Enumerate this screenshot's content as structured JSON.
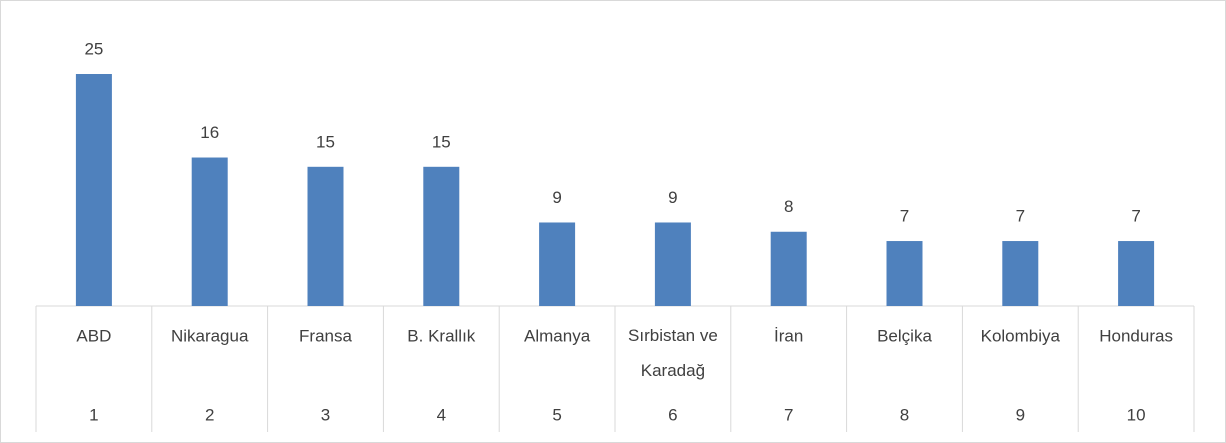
{
  "chart_data": {
    "type": "bar",
    "categories": [
      "ABD",
      "Nikaragua",
      "Fransa",
      "B. Krallık",
      "Almanya",
      "Sırbistan ve Karadağ",
      "İran",
      "Belçika",
      "Kolombiya",
      "Honduras"
    ],
    "ranks": [
      "1",
      "2",
      "3",
      "4",
      "5",
      "6",
      "7",
      "8",
      "9",
      "10"
    ],
    "values": [
      25,
      16,
      15,
      15,
      9,
      9,
      8,
      7,
      7,
      7
    ],
    "color": "#4f81bd",
    "ylim": [
      0,
      25
    ]
  }
}
